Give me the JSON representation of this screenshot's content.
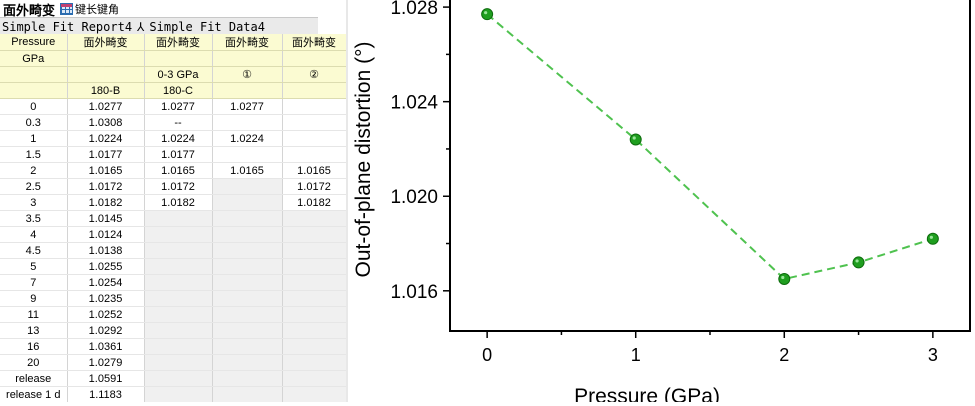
{
  "tabs": {
    "active_label": "面外畸变",
    "second_label": "键长键角",
    "report_label": "Simple Fit Report4",
    "data_label": "Simple Fit Data4"
  },
  "sheet": {
    "header_rows": [
      [
        "Pressure",
        "面外畸变",
        "面外畸变",
        "面外畸变",
        "面外畸变"
      ],
      [
        "GPa",
        "",
        "",
        "",
        ""
      ],
      [
        "",
        "",
        "0-3 GPa",
        "①",
        "②"
      ],
      [
        "",
        "180-B",
        "180-C",
        "",
        ""
      ]
    ],
    "rows": [
      [
        "0",
        "1.0277",
        "1.0277",
        "1.0277",
        ""
      ],
      [
        "0.3",
        "1.0308",
        "--",
        "",
        ""
      ],
      [
        "1",
        "1.0224",
        "1.0224",
        "1.0224",
        ""
      ],
      [
        "1.5",
        "1.0177",
        "1.0177",
        "",
        ""
      ],
      [
        "2",
        "1.0165",
        "1.0165",
        "1.0165",
        "1.0165"
      ],
      [
        "2.5",
        "1.0172",
        "1.0172",
        "",
        "1.0172"
      ],
      [
        "3",
        "1.0182",
        "1.0182",
        "",
        "1.0182"
      ],
      [
        "3.5",
        "1.0145",
        "",
        "",
        ""
      ],
      [
        "4",
        "1.0124",
        "",
        "",
        ""
      ],
      [
        "4.5",
        "1.0138",
        "",
        "",
        ""
      ],
      [
        "5",
        "1.0255",
        "",
        "",
        ""
      ],
      [
        "7",
        "1.0254",
        "",
        "",
        ""
      ],
      [
        "9",
        "1.0235",
        "",
        "",
        ""
      ],
      [
        "11",
        "1.0252",
        "",
        "",
        ""
      ],
      [
        "13",
        "1.0292",
        "",
        "",
        ""
      ],
      [
        "16",
        "1.0361",
        "",
        "",
        ""
      ],
      [
        "20",
        "1.0279",
        "",
        "",
        ""
      ],
      [
        "release",
        "1.0591",
        "",
        "",
        ""
      ],
      [
        "release 1 d",
        "1.1183",
        "",
        "",
        ""
      ]
    ]
  },
  "chart_data": {
    "type": "line",
    "title": "",
    "xlabel": "Pressure (GPa)",
    "ylabel": "Out-of-plane distortion (°)",
    "x_ticks": [
      "0",
      "1",
      "2",
      "3"
    ],
    "y_ticks": [
      "1.016",
      "1.020",
      "1.024",
      "1.028"
    ],
    "xlim": [
      -0.25,
      3.25
    ],
    "ylim": [
      1.0143,
      1.0283
    ],
    "series": [
      {
        "x": [
          0,
          1,
          2,
          2.5,
          3
        ],
        "y": [
          1.0277,
          1.0224,
          1.0165,
          1.0172,
          1.0182
        ]
      }
    ],
    "marker_color": "#1f9e1f",
    "line_color": "#4fc24f",
    "line_style": "dashed",
    "grid": false
  }
}
